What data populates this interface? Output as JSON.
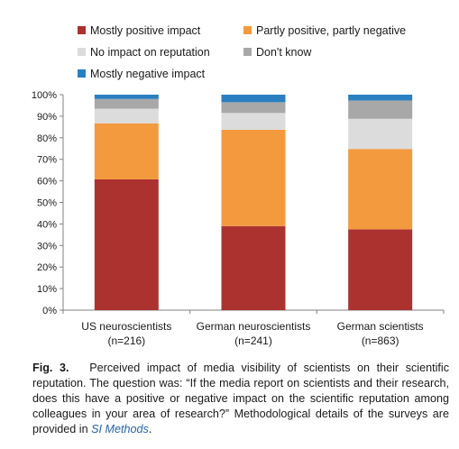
{
  "colors": {
    "mostly_positive": "#ac3230",
    "partly_mixed": "#f39a3e",
    "no_impact": "#dcdcdc",
    "dont_know": "#a8a8a8",
    "mostly_negative": "#2a7fc0",
    "axis": "#808080"
  },
  "chart_data": {
    "type": "bar",
    "stacked": true,
    "categories": [
      [
        "US neuroscientists",
        "(n=216)"
      ],
      [
        "German neuroscientists",
        "(n=241)"
      ],
      [
        "German scientists",
        "(n=863)"
      ]
    ],
    "series": [
      {
        "name": "Mostly positive impact",
        "values": [
          60.7,
          39.0,
          37.5
        ]
      },
      {
        "name": "Partly positive, partly negative",
        "values": [
          26.0,
          44.7,
          37.3
        ]
      },
      {
        "name": "No impact on reputation",
        "values": [
          6.8,
          7.8,
          14.0
        ]
      },
      {
        "name": "Don't know",
        "values": [
          4.5,
          5.0,
          8.5
        ]
      },
      {
        "name": "Mostly negative impact",
        "values": [
          2.0,
          3.5,
          2.7
        ]
      }
    ],
    "yticks": [
      "0%",
      "10%",
      "20%",
      "30%",
      "40%",
      "50%",
      "60%",
      "70%",
      "80%",
      "90%",
      "100%"
    ],
    "ylim": [
      0,
      100
    ],
    "grid": false,
    "legend": {
      "placement": "top",
      "columns": 2,
      "order": [
        0,
        1,
        2,
        3,
        4
      ]
    }
  },
  "caption": {
    "label": "Fig. 3.",
    "text": "Perceived impact of media visibility of scientists on their scientific reputation. The question was: “If the media report on scientists and their research, does this have a positive or negative impact on the scientific reputation among colleagues in your area of research?” Methodological details of the surveys are provided in ",
    "link": "SI Methods",
    "end": "."
  }
}
